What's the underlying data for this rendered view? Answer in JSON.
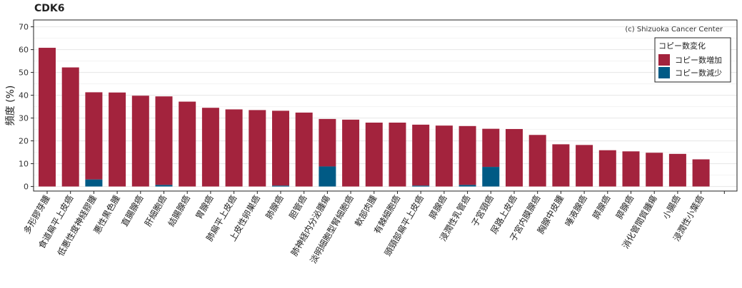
{
  "chart_data": {
    "type": "bar",
    "stacked": true,
    "title": "CDK6",
    "ylabel": "頻度 (%)",
    "xlabel": "",
    "ylim": [
      -2,
      73
    ],
    "yticks": [
      0,
      10,
      20,
      30,
      40,
      50,
      60,
      70
    ],
    "grid": true,
    "legend_title": "コピー数変化",
    "legend_position": "top-right",
    "annotation": "(c) Shizuoka Cancer Center",
    "colors": {
      "gain": "#a3233d",
      "loss": "#005a85"
    },
    "categories": [
      "多形膠芽腫",
      "食道扁平上皮癌",
      "低悪性度神経膠腫",
      "悪性黒色腫",
      "直腸腺癌",
      "肝細胞癌",
      "結腸腺癌",
      "胃腺癌",
      "肺扁平上皮癌",
      "上皮性卵巣癌",
      "肺腺癌",
      "胆管癌",
      "肺神経内分泌腫瘍",
      "淡明細胞型腎細胞癌",
      "軟部肉腫",
      "有棘細胞癌",
      "頭頸部扁平上皮癌",
      "膵腺癌",
      "浸潤性乳管癌",
      "子宮頸癌",
      "尿路上皮癌",
      "子宮内膜腺癌",
      "胸腺中皮腫",
      "唾液腺癌",
      "膵腺癌",
      "膵腺癌",
      "消化管間質腫瘍",
      "小腸癌",
      "浸潤性小葉癌"
    ],
    "series": [
      {
        "name": "コピー数増加",
        "values": [
          60.8,
          52.2,
          38.2,
          41.2,
          39.8,
          38.8,
          37.2,
          34.5,
          33.8,
          33.5,
          32.8,
          32.4,
          20.8,
          29.3,
          28.0,
          28.0,
          26.7,
          26.7,
          25.8,
          16.7,
          25.2,
          22.6,
          18.5,
          18.2,
          15.9,
          15.4,
          14.8,
          14.3,
          11.9
        ]
      },
      {
        "name": "コピー数減少",
        "values": [
          0,
          0,
          3.1,
          0,
          0,
          0.7,
          0,
          0,
          0,
          0,
          0.4,
          0,
          8.8,
          0,
          0,
          0,
          0.4,
          0,
          0.7,
          8.6,
          0,
          0,
          0,
          0,
          0,
          0,
          0,
          0,
          0
        ]
      }
    ]
  }
}
